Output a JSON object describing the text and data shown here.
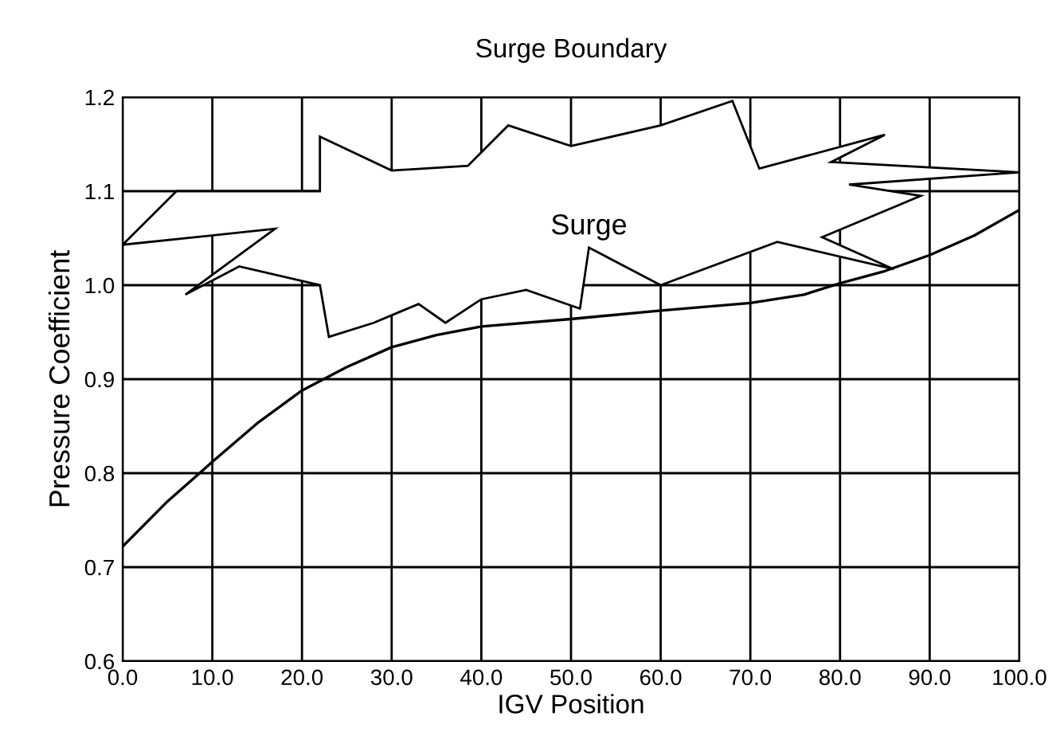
{
  "chart_data": {
    "type": "line",
    "title": "Surge Boundary",
    "xlabel": "IGV Position",
    "ylabel": "Pressure Coefficient",
    "x": [
      0,
      5,
      10,
      15,
      20,
      25,
      30,
      35,
      40,
      50,
      60,
      70,
      76,
      80,
      85,
      90,
      95,
      100
    ],
    "series": [
      {
        "color": "#000000",
        "values": [
          0.722,
          0.77,
          0.812,
          0.853,
          0.888,
          0.913,
          0.934,
          0.947,
          0.956,
          0.964,
          0.973,
          0.981,
          0.99,
          1.002,
          1.015,
          1.032,
          1.053,
          1.08
        ]
      }
    ],
    "annotations": [
      "Surge"
    ],
    "xlim": [
      0,
      100
    ],
    "ylim": [
      0.6,
      1.2
    ],
    "xticks": [
      {
        "value": 0,
        "label": "0.0"
      },
      {
        "value": 10,
        "label": "10.0"
      },
      {
        "value": 20,
        "label": "20.0"
      },
      {
        "value": 30,
        "label": "30.0"
      },
      {
        "value": 40,
        "label": "40.0"
      },
      {
        "value": 50,
        "label": "50.0"
      },
      {
        "value": 60,
        "label": "60.0"
      },
      {
        "value": 70,
        "label": "70.0"
      },
      {
        "value": 80,
        "label": "80.0"
      },
      {
        "value": 90,
        "label": "90.0"
      },
      {
        "value": 100,
        "label": "100.0"
      }
    ],
    "yticks": [
      0.6,
      0.7,
      0.8,
      0.9,
      {
        "value": 1,
        "label": "1.0"
      },
      1.1,
      1.2
    ],
    "grid": true,
    "marker": "none",
    "line_style": "solid"
  }
}
